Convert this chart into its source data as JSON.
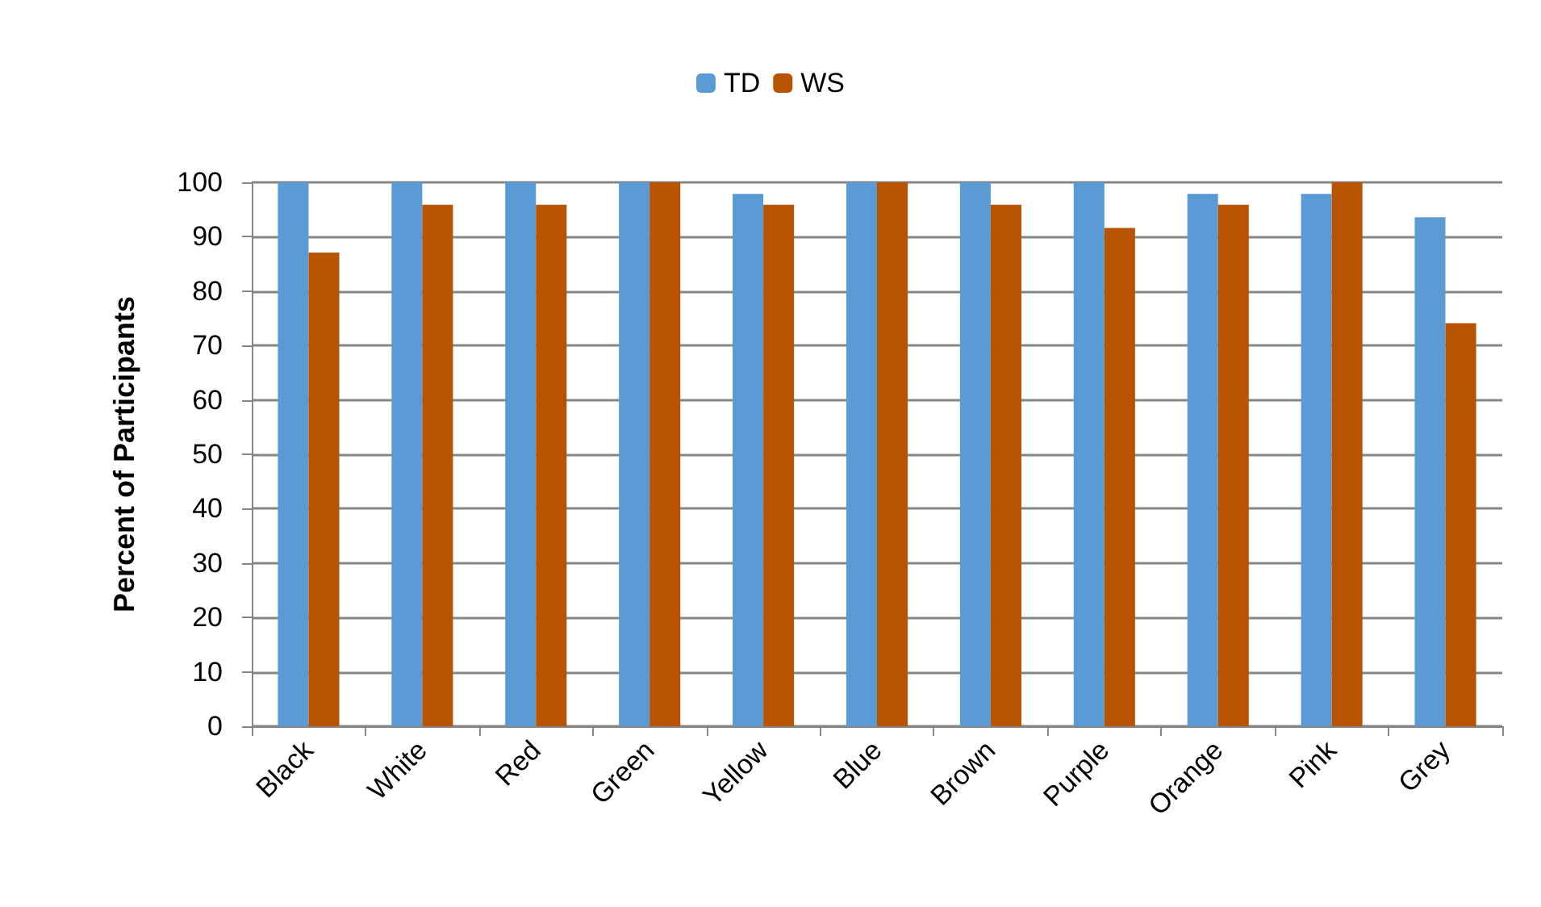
{
  "chart_data": {
    "type": "bar",
    "ylabel": "Percent of Participants",
    "categories": [
      "Black",
      "White",
      "Red",
      "Green",
      "Yellow",
      "Blue",
      "Brown",
      "Purple",
      "Orange",
      "Pink",
      "Grey"
    ],
    "series": [
      {
        "name": "TD",
        "color": "#5b9bd5",
        "values": [
          100,
          100,
          100,
          100,
          97.9,
          100,
          100,
          100,
          97.9,
          97.9,
          93.6
        ]
      },
      {
        "name": "WS",
        "color": "#b85400",
        "values": [
          87.1,
          95.9,
          95.9,
          100,
          95.9,
          100,
          95.9,
          91.6,
          95.9,
          100,
          74.1
        ]
      }
    ],
    "ylim": [
      0,
      100
    ],
    "yticks": [
      0,
      10,
      20,
      30,
      40,
      50,
      60,
      70,
      80,
      90,
      100
    ],
    "grid": "y",
    "legend": "top"
  }
}
